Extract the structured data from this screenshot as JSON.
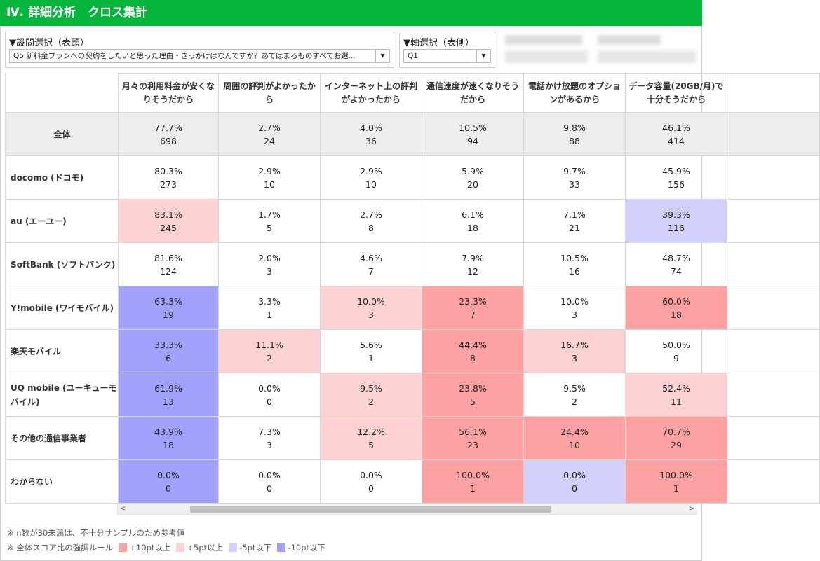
{
  "header": {
    "title": "Ⅳ. 詳細分析　クロス集計"
  },
  "question_select": {
    "label": "▼設問選択（表頭）",
    "value": "Q5 新料金プランへの契約をしたいと思った理由・きっかけはなんですか？あてはまるものすべてお選..."
  },
  "axis_select": {
    "label": "▼軸選択（表側）",
    "value": "Q1"
  },
  "icons": {
    "caret": "chevron-down-icon",
    "scroll_left": "chevron-left-icon",
    "scroll_right": "chevron-right-icon"
  },
  "table": {
    "columns": [
      "月々の利用料金が安くなりそうだから",
      "周囲の評判がよかったから",
      "インターネット上の評判がよかったから",
      "通信速度が速くなりそうだから",
      "電話かけ放題のオプションがあるから",
      "データ容量(20GB/月)で十分そうだから"
    ],
    "rows": [
      {
        "label": "全体",
        "total": true,
        "cells": [
          {
            "pct": "77.7%",
            "n": "698",
            "hl": ""
          },
          {
            "pct": "2.7%",
            "n": "24",
            "hl": ""
          },
          {
            "pct": "4.0%",
            "n": "36",
            "hl": ""
          },
          {
            "pct": "10.5%",
            "n": "94",
            "hl": ""
          },
          {
            "pct": "9.8%",
            "n": "88",
            "hl": ""
          },
          {
            "pct": "46.1%",
            "n": "414",
            "hl": ""
          }
        ]
      },
      {
        "label": "docomo (ドコモ)",
        "cells": [
          {
            "pct": "80.3%",
            "n": "273",
            "hl": ""
          },
          {
            "pct": "2.9%",
            "n": "10",
            "hl": ""
          },
          {
            "pct": "2.9%",
            "n": "10",
            "hl": ""
          },
          {
            "pct": "5.9%",
            "n": "20",
            "hl": ""
          },
          {
            "pct": "9.7%",
            "n": "33",
            "hl": ""
          },
          {
            "pct": "45.9%",
            "n": "156",
            "hl": ""
          }
        ]
      },
      {
        "label": "au (エーユー)",
        "cells": [
          {
            "pct": "83.1%",
            "n": "245",
            "hl": "p5"
          },
          {
            "pct": "1.7%",
            "n": "5",
            "hl": ""
          },
          {
            "pct": "2.7%",
            "n": "8",
            "hl": ""
          },
          {
            "pct": "6.1%",
            "n": "18",
            "hl": ""
          },
          {
            "pct": "7.1%",
            "n": "21",
            "hl": ""
          },
          {
            "pct": "39.3%",
            "n": "116",
            "hl": "m5"
          }
        ]
      },
      {
        "label": "SoftBank (ソフトバンク)",
        "cells": [
          {
            "pct": "81.6%",
            "n": "124",
            "hl": ""
          },
          {
            "pct": "2.0%",
            "n": "3",
            "hl": ""
          },
          {
            "pct": "4.6%",
            "n": "7",
            "hl": ""
          },
          {
            "pct": "7.9%",
            "n": "12",
            "hl": ""
          },
          {
            "pct": "10.5%",
            "n": "16",
            "hl": ""
          },
          {
            "pct": "48.7%",
            "n": "74",
            "hl": ""
          }
        ]
      },
      {
        "label": "Y!mobile (ワイモバイル)",
        "cells": [
          {
            "pct": "63.3%",
            "n": "19",
            "hl": "m10"
          },
          {
            "pct": "3.3%",
            "n": "1",
            "hl": ""
          },
          {
            "pct": "10.0%",
            "n": "3",
            "hl": "p5"
          },
          {
            "pct": "23.3%",
            "n": "7",
            "hl": "p10"
          },
          {
            "pct": "10.0%",
            "n": "3",
            "hl": ""
          },
          {
            "pct": "60.0%",
            "n": "18",
            "hl": "p10"
          }
        ]
      },
      {
        "label": "楽天モバイル",
        "cells": [
          {
            "pct": "33.3%",
            "n": "6",
            "hl": "m10"
          },
          {
            "pct": "11.1%",
            "n": "2",
            "hl": "p5"
          },
          {
            "pct": "5.6%",
            "n": "1",
            "hl": ""
          },
          {
            "pct": "44.4%",
            "n": "8",
            "hl": "p10"
          },
          {
            "pct": "16.7%",
            "n": "3",
            "hl": "p5"
          },
          {
            "pct": "50.0%",
            "n": "9",
            "hl": ""
          }
        ]
      },
      {
        "label": "UQ mobile (ユーキューモバイル)",
        "cells": [
          {
            "pct": "61.9%",
            "n": "13",
            "hl": "m10"
          },
          {
            "pct": "0.0%",
            "n": "0",
            "hl": ""
          },
          {
            "pct": "9.5%",
            "n": "2",
            "hl": "p5"
          },
          {
            "pct": "23.8%",
            "n": "5",
            "hl": "p10"
          },
          {
            "pct": "9.5%",
            "n": "2",
            "hl": ""
          },
          {
            "pct": "52.4%",
            "n": "11",
            "hl": "p5"
          }
        ]
      },
      {
        "label": "その他の通信事業者",
        "cells": [
          {
            "pct": "43.9%",
            "n": "18",
            "hl": "m10"
          },
          {
            "pct": "7.3%",
            "n": "3",
            "hl": ""
          },
          {
            "pct": "12.2%",
            "n": "5",
            "hl": "p5"
          },
          {
            "pct": "56.1%",
            "n": "23",
            "hl": "p10"
          },
          {
            "pct": "24.4%",
            "n": "10",
            "hl": "p10"
          },
          {
            "pct": "70.7%",
            "n": "29",
            "hl": "p10"
          }
        ]
      },
      {
        "label": "わからない",
        "cells": [
          {
            "pct": "0.0%",
            "n": "0",
            "hl": "m10"
          },
          {
            "pct": "0.0%",
            "n": "0",
            "hl": ""
          },
          {
            "pct": "0.0%",
            "n": "0",
            "hl": ""
          },
          {
            "pct": "100.0%",
            "n": "1",
            "hl": "p10"
          },
          {
            "pct": "0.0%",
            "n": "0",
            "hl": "m5"
          },
          {
            "pct": "100.0%",
            "n": "1",
            "hl": "p10"
          }
        ]
      }
    ]
  },
  "notes": {
    "sample_note": "※ n数が30未満は、不十分サンプルのため参考値",
    "legend_prefix": "※ 全体スコア比の強調ルール",
    "legend": [
      {
        "label": "+10pt以上",
        "color": "#fea1a2"
      },
      {
        "label": "+5pt以上",
        "color": "#fed1d2"
      },
      {
        "label": "-5pt以下",
        "color": "#d0d0fa"
      },
      {
        "label": "-10pt以下",
        "color": "#a1a1fb"
      }
    ]
  }
}
